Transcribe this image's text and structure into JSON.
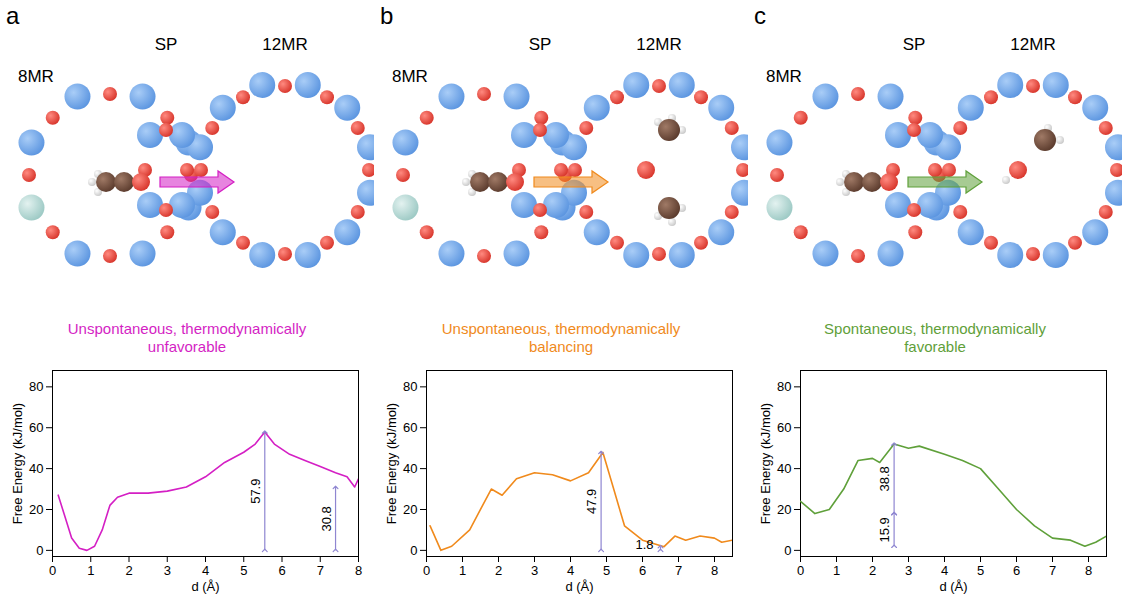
{
  "chart_data": [
    {
      "type": "line",
      "panel": "a",
      "diagram_labels": [
        "8MR",
        "SP",
        "12MR"
      ],
      "subtitle": "Unspontaneous, thermodynamically unfavorable",
      "x_label": "d (Å)",
      "y_label": "Free Energy (kJ/mol)",
      "xlim": [
        0,
        8
      ],
      "xticks": [
        0,
        1,
        2,
        3,
        4,
        5,
        6,
        7,
        8
      ],
      "ylim": [
        -3,
        88
      ],
      "yticks": [
        0,
        20,
        40,
        60,
        80
      ],
      "x": [
        0.15,
        0.3,
        0.5,
        0.7,
        0.9,
        1.1,
        1.3,
        1.5,
        1.7,
        2.0,
        2.5,
        3.0,
        3.5,
        4.0,
        4.5,
        5.0,
        5.3,
        5.55,
        5.8,
        6.2,
        6.6,
        7.0,
        7.4,
        7.7,
        7.9,
        8.0
      ],
      "series": [
        {
          "color": "#d41fc4",
          "values": [
            27,
            18,
            6,
            1,
            0,
            2,
            10,
            22,
            26,
            28,
            28,
            29,
            31,
            36,
            43,
            48,
            52,
            57.9,
            52,
            47,
            44,
            41,
            38,
            36,
            31,
            35
          ]
        }
      ],
      "annotations": [
        {
          "text": "57.9",
          "x": 5.55,
          "y1": 0,
          "y2": 57.9
        },
        {
          "text": "30.8",
          "x": 7.4,
          "y1": 0,
          "y2": 30.8
        }
      ]
    },
    {
      "type": "line",
      "panel": "b",
      "diagram_labels": [
        "8MR",
        "SP",
        "12MR"
      ],
      "subtitle": "Unspontaneous, thermodynamically balancing",
      "x_label": "d (Å)",
      "y_label": "Free Energy (kJ/mol)",
      "xlim": [
        0,
        8.5
      ],
      "xticks": [
        0,
        1,
        2,
        3,
        4,
        5,
        6,
        7,
        8
      ],
      "ylim": [
        -3,
        88
      ],
      "yticks": [
        0,
        20,
        40,
        60,
        80
      ],
      "x": [
        0.1,
        0.4,
        0.7,
        1.2,
        1.5,
        1.8,
        2.1,
        2.5,
        3.0,
        3.5,
        4.0,
        4.5,
        4.9,
        5.2,
        5.5,
        6.0,
        6.6,
        6.9,
        7.2,
        7.6,
        8.0,
        8.2,
        8.5
      ],
      "series": [
        {
          "color": "#f08a1c",
          "values": [
            12,
            0,
            2,
            10,
            20,
            30,
            27,
            35,
            38,
            37,
            34,
            38,
            47.9,
            30,
            12,
            5,
            1.8,
            7,
            5,
            7,
            6,
            4,
            5
          ]
        }
      ],
      "annotations": [
        {
          "text": "47.9",
          "x": 4.85,
          "y1": 0,
          "y2": 47.9
        },
        {
          "text": "1.8",
          "x": 6.5,
          "y1": 0,
          "y2": 1.8
        }
      ]
    },
    {
      "type": "line",
      "panel": "c",
      "diagram_labels": [
        "8MR",
        "SP",
        "12MR"
      ],
      "subtitle": "Spontaneous, thermodynamically favorable",
      "x_label": "d (Å)",
      "y_label": "Free Energy (kJ/mol)",
      "xlim": [
        0,
        8.5
      ],
      "xticks": [
        0,
        1,
        2,
        3,
        4,
        5,
        6,
        7,
        8
      ],
      "ylim": [
        -3,
        88
      ],
      "yticks": [
        0,
        20,
        40,
        60,
        80
      ],
      "x": [
        0.0,
        0.4,
        0.8,
        1.2,
        1.6,
        2.0,
        2.2,
        2.6,
        3.0,
        3.3,
        4.0,
        4.5,
        5.0,
        5.5,
        6.0,
        6.5,
        7.0,
        7.5,
        7.9,
        8.2,
        8.5
      ],
      "series": [
        {
          "color": "#5fa03a",
          "values": [
            24,
            18,
            20,
            30,
            44,
            45,
            43,
            52,
            50,
            51,
            47,
            44,
            40,
            30,
            20,
            12,
            6,
            5,
            2,
            4,
            7
          ]
        }
      ],
      "annotations": [
        {
          "text": "38.8",
          "x": 2.6,
          "y1": 18,
          "y2": 52
        },
        {
          "text": "15.9",
          "x": 2.6,
          "y1": 2,
          "y2": 18
        }
      ]
    }
  ]
}
